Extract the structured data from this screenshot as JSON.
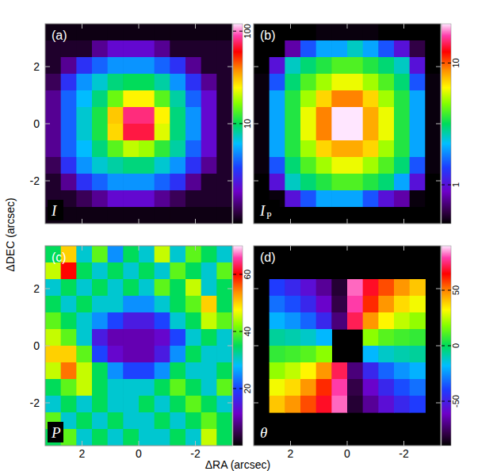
{
  "chart_data": [
    {
      "type": "heatmap",
      "panel_label": "(a)",
      "quantity": "I",
      "ylabel": "ΔDEC (arcsec)",
      "xlim": [
        3.3,
        -3.3
      ],
      "ylim": [
        -3.5,
        3.5
      ],
      "xticks": [
        2,
        0,
        -2
      ],
      "yticks": [
        -2,
        0,
        2
      ],
      "tick_labels": "y",
      "colorbar": {
        "range": [
          0.83,
          120
        ],
        "ticks": [
          10,
          100
        ],
        "log": true
      },
      "cells": [
        [
          0.9,
          0.9,
          0.9,
          0.9,
          0.9,
          0.9,
          0.9,
          0.9,
          0.9,
          0.9,
          0.9,
          0.9
        ],
        [
          1,
          1,
          1,
          1.5,
          2,
          2,
          2,
          1.5,
          1,
          1,
          1,
          1
        ],
        [
          1,
          1.5,
          3,
          4,
          5,
          5,
          5,
          4,
          3,
          1.5,
          1,
          1
        ],
        [
          1.2,
          3,
          5,
          7,
          9,
          10,
          10,
          8,
          5,
          3,
          1.5,
          1
        ],
        [
          1.5,
          4,
          6,
          9,
          15,
          25,
          25,
          14,
          8,
          4,
          2,
          1
        ],
        [
          1.5,
          4,
          7,
          11,
          30,
          80,
          80,
          25,
          9,
          5,
          2,
          1
        ],
        [
          1.5,
          4,
          7,
          11,
          28,
          70,
          70,
          22,
          9,
          5,
          2,
          1
        ],
        [
          1.5,
          4,
          6,
          9,
          14,
          20,
          18,
          12,
          8,
          4,
          2,
          1
        ],
        [
          1.2,
          3,
          5,
          7,
          8,
          9,
          9,
          7,
          5,
          3,
          1.5,
          1
        ],
        [
          1,
          1.5,
          3,
          4,
          5,
          5,
          5,
          4,
          3,
          1.5,
          1,
          1
        ],
        [
          1,
          1,
          1.2,
          1.5,
          2,
          2,
          2,
          1.5,
          1.2,
          1,
          1,
          1
        ],
        [
          0.9,
          0.9,
          0.9,
          0.9,
          0.9,
          0.9,
          0.9,
          0.9,
          0.9,
          0.9,
          0.9,
          0.9
        ]
      ]
    },
    {
      "type": "heatmap",
      "panel_label": "(b)",
      "quantity": "I",
      "quantity_subscript": "P",
      "xlim": [
        3.3,
        -3.3
      ],
      "ylim": [
        -3.5,
        3.5
      ],
      "xticks": [
        2,
        0,
        -2
      ],
      "yticks": [
        -2,
        0,
        2
      ],
      "tick_labels": false,
      "colorbar": {
        "range": [
          0.48,
          21
        ],
        "ticks": [
          1,
          10
        ],
        "log": true
      },
      "cells": [
        [
          0.4,
          0.4,
          0.4,
          0.4,
          0.5,
          0.5,
          0.5,
          0.5,
          0.4,
          0.4,
          0.4,
          0.4
        ],
        [
          0.4,
          0.4,
          0.8,
          1.5,
          2,
          2,
          2.5,
          2,
          1.5,
          1,
          0.6,
          0.4
        ],
        [
          0.4,
          1,
          2.5,
          3,
          3.5,
          4,
          4,
          3.5,
          3,
          2.5,
          1,
          0.4
        ],
        [
          0.5,
          1.5,
          3,
          4,
          5,
          6,
          6,
          5,
          4,
          3,
          1.5,
          0.5
        ],
        [
          0.5,
          2,
          3.5,
          5,
          7,
          9,
          9,
          7,
          5,
          3.5,
          2,
          0.5
        ],
        [
          0.5,
          2,
          3.5,
          6,
          9,
          25,
          25,
          8,
          6,
          3.5,
          2,
          0.5
        ],
        [
          0.5,
          2,
          3.5,
          6,
          9,
          25,
          22,
          8,
          6,
          3.5,
          2,
          0.5
        ],
        [
          0.5,
          2,
          3.5,
          5,
          7,
          8,
          8,
          7,
          5,
          3.5,
          2,
          0.5
        ],
        [
          0.5,
          1.5,
          3,
          4,
          5,
          6,
          6,
          5,
          4,
          3,
          1.5,
          0.5
        ],
        [
          0.4,
          1,
          2.5,
          3,
          3.5,
          4,
          4,
          3.5,
          3,
          2,
          1,
          0.4
        ],
        [
          0.4,
          0.5,
          1,
          1.5,
          2,
          2,
          2,
          1.5,
          1,
          0.8,
          0.5,
          0.4
        ],
        [
          0.4,
          0.4,
          0.4,
          0.4,
          0.4,
          0.4,
          0.4,
          0.4,
          0.4,
          0.4,
          0.4,
          0.4
        ]
      ]
    },
    {
      "type": "heatmap",
      "panel_label": "(c)",
      "quantity": "P",
      "xlabel": "ΔRA (arcsec)",
      "xlim": [
        3.3,
        -3.3
      ],
      "ylim": [
        -3.5,
        3.5
      ],
      "xticks": [
        2,
        0,
        -2
      ],
      "yticks": [
        -2,
        0,
        2
      ],
      "tick_labels": true,
      "colorbar": {
        "range": [
          0,
          70
        ],
        "ticks": [
          20,
          40,
          60
        ],
        "log": false
      },
      "cells": [
        [
          35,
          50,
          30,
          40,
          25,
          35,
          30,
          45,
          30,
          40,
          35,
          30
        ],
        [
          45,
          60,
          35,
          30,
          35,
          30,
          35,
          30,
          40,
          35,
          30,
          40
        ],
        [
          30,
          35,
          30,
          35,
          30,
          35,
          30,
          40,
          35,
          45,
          30,
          35
        ],
        [
          35,
          30,
          35,
          30,
          30,
          25,
          25,
          30,
          35,
          40,
          50,
          35
        ],
        [
          40,
          35,
          30,
          25,
          20,
          15,
          15,
          20,
          30,
          35,
          45,
          40
        ],
        [
          45,
          40,
          30,
          15,
          10,
          10,
          10,
          12,
          20,
          30,
          35,
          30
        ],
        [
          50,
          50,
          40,
          20,
          12,
          10,
          10,
          15,
          25,
          35,
          30,
          30
        ],
        [
          45,
          55,
          45,
          35,
          25,
          20,
          20,
          25,
          35,
          30,
          30,
          35
        ],
        [
          35,
          40,
          45,
          35,
          30,
          30,
          30,
          35,
          40,
          35,
          30,
          40
        ],
        [
          30,
          35,
          30,
          35,
          30,
          30,
          35,
          30,
          35,
          40,
          35,
          30
        ],
        [
          40,
          30,
          35,
          30,
          35,
          30,
          30,
          35,
          30,
          35,
          40,
          35
        ],
        [
          35,
          40,
          30,
          35,
          30,
          35,
          30,
          30,
          35,
          30,
          45,
          35
        ]
      ]
    },
    {
      "type": "heatmap",
      "panel_label": "(d)",
      "quantity": "θ",
      "xlim": [
        3.3,
        -3.3
      ],
      "ylim": [
        -3.5,
        3.5
      ],
      "xticks": [
        2,
        0,
        -2
      ],
      "yticks": [
        -2,
        0,
        2
      ],
      "tick_labels": "x",
      "colorbar": {
        "range": [
          -90,
          90
        ],
        "ticks": [
          -50,
          0,
          50
        ],
        "log": false
      },
      "cells": [
        [
          null,
          null,
          null,
          null,
          null,
          null,
          null,
          null,
          null,
          null,
          null,
          null
        ],
        [
          null,
          null,
          null,
          null,
          null,
          null,
          null,
          null,
          null,
          null,
          null,
          null
        ],
        [
          null,
          -40,
          -47,
          -56,
          -68,
          -82,
          82,
          68,
          56,
          47,
          40,
          null
        ],
        [
          null,
          -31,
          -37,
          -47,
          -60,
          -79,
          79,
          60,
          47,
          37,
          31,
          null
        ],
        [
          null,
          -20,
          -25,
          -33,
          -47,
          -72,
          72,
          47,
          33,
          25,
          20,
          null
        ],
        [
          null,
          -7,
          -9,
          -12,
          -19,
          null,
          null,
          19,
          12,
          9,
          7,
          null
        ],
        [
          null,
          7,
          9,
          12,
          19,
          null,
          null,
          -19,
          -12,
          -9,
          -7,
          null
        ],
        [
          null,
          20,
          25,
          33,
          47,
          72,
          -72,
          -47,
          -33,
          -25,
          -20,
          null
        ],
        [
          null,
          31,
          37,
          47,
          60,
          79,
          -79,
          -60,
          -47,
          -37,
          -31,
          null
        ],
        [
          null,
          40,
          47,
          56,
          68,
          82,
          -82,
          -68,
          -56,
          -47,
          -40,
          null
        ],
        [
          null,
          null,
          null,
          null,
          null,
          null,
          null,
          null,
          null,
          null,
          null,
          null
        ],
        [
          null,
          null,
          null,
          null,
          null,
          null,
          null,
          null,
          null,
          null,
          null,
          null
        ]
      ]
    }
  ]
}
